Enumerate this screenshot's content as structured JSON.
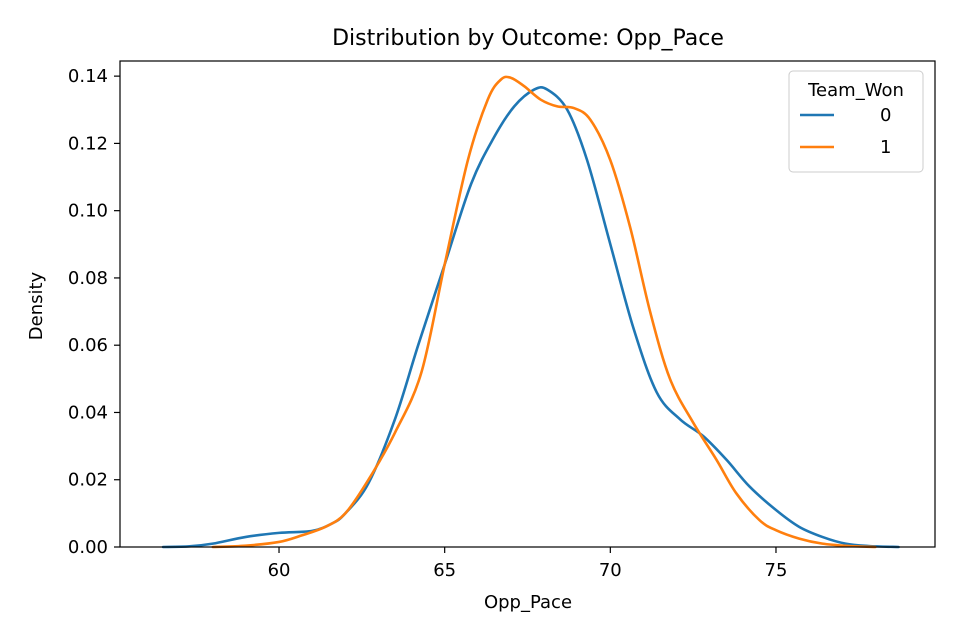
{
  "chart_data": {
    "type": "line",
    "title": "Distribution by Outcome: Opp_Pace",
    "xlabel": "Opp_Pace",
    "ylabel": "Density",
    "xlim": [
      55.2,
      79.8
    ],
    "ylim": [
      0,
      0.1445
    ],
    "xticks": [
      60,
      65,
      70,
      75
    ],
    "yticks": [
      0.0,
      0.02,
      0.04,
      0.06,
      0.08,
      0.1,
      0.12,
      0.14
    ],
    "grid": false,
    "legend": {
      "title": "Team_Won",
      "placement": "top-right"
    },
    "series": [
      {
        "name": "0",
        "color": "#1f77b4",
        "x": [
          56.5,
          57.3,
          58.0,
          59.0,
          60.0,
          61.0,
          61.6,
          62.0,
          62.7,
          63.5,
          64.2,
          65.0,
          65.8,
          66.5,
          67.1,
          67.7,
          68.1,
          68.7,
          69.3,
          70.0,
          70.7,
          71.4,
          72.1,
          72.8,
          73.5,
          74.2,
          75.0,
          75.7,
          76.4,
          77.1,
          77.8,
          78.7
        ],
        "y": [
          0.0,
          0.0002,
          0.001,
          0.003,
          0.0042,
          0.0048,
          0.007,
          0.01,
          0.019,
          0.038,
          0.06,
          0.084,
          0.108,
          0.122,
          0.131,
          0.136,
          0.136,
          0.13,
          0.115,
          0.09,
          0.065,
          0.046,
          0.038,
          0.033,
          0.026,
          0.018,
          0.011,
          0.006,
          0.003,
          0.001,
          0.0003,
          0.0
        ]
      },
      {
        "name": "1",
        "color": "#ff7f0e",
        "x": [
          58.0,
          59.0,
          60.0,
          60.7,
          61.4,
          62.0,
          62.7,
          63.5,
          64.3,
          65.0,
          65.7,
          66.3,
          66.7,
          67.0,
          67.4,
          67.9,
          68.4,
          68.9,
          69.4,
          70.0,
          70.6,
          71.2,
          71.8,
          72.5,
          73.2,
          73.8,
          74.5,
          75.0,
          75.7,
          76.4,
          77.2,
          78.0
        ],
        "y": [
          0.0,
          0.0004,
          0.0015,
          0.0035,
          0.006,
          0.01,
          0.02,
          0.034,
          0.052,
          0.084,
          0.115,
          0.133,
          0.139,
          0.1395,
          0.137,
          0.133,
          0.131,
          0.1305,
          0.127,
          0.115,
          0.095,
          0.07,
          0.05,
          0.037,
          0.026,
          0.016,
          0.008,
          0.005,
          0.0025,
          0.001,
          0.0003,
          0.0
        ]
      }
    ]
  }
}
